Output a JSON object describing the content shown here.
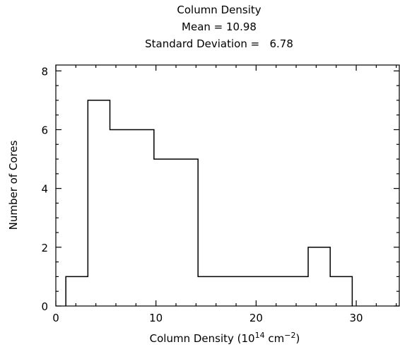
{
  "chart_data": {
    "type": "histogram",
    "title_lines": [
      "Column Density",
      "Mean = 10.98",
      "Standard Deviation =   6.78"
    ],
    "xlabel": {
      "prefix": "Column Density  (10",
      "sup1": "14",
      "mid": " cm",
      "sup2": "−2",
      "suffix": ")"
    },
    "ylabel": "Number of Cores",
    "xlim": [
      0,
      34.3
    ],
    "ylim": [
      0,
      8.2
    ],
    "xticks": [
      0,
      10,
      20,
      30
    ],
    "yticks": [
      0,
      2,
      4,
      6,
      8
    ],
    "bin_width": 2.2,
    "bin_edges": [
      1,
      3.2,
      5.4,
      7.6,
      9.8,
      12,
      14.2,
      16.4,
      18.6,
      20.8,
      23,
      25.2,
      27.4,
      29.6
    ],
    "counts": [
      1,
      7,
      6,
      6,
      5,
      5,
      1,
      1,
      1,
      1,
      1,
      2,
      1
    ],
    "grid": false
  }
}
